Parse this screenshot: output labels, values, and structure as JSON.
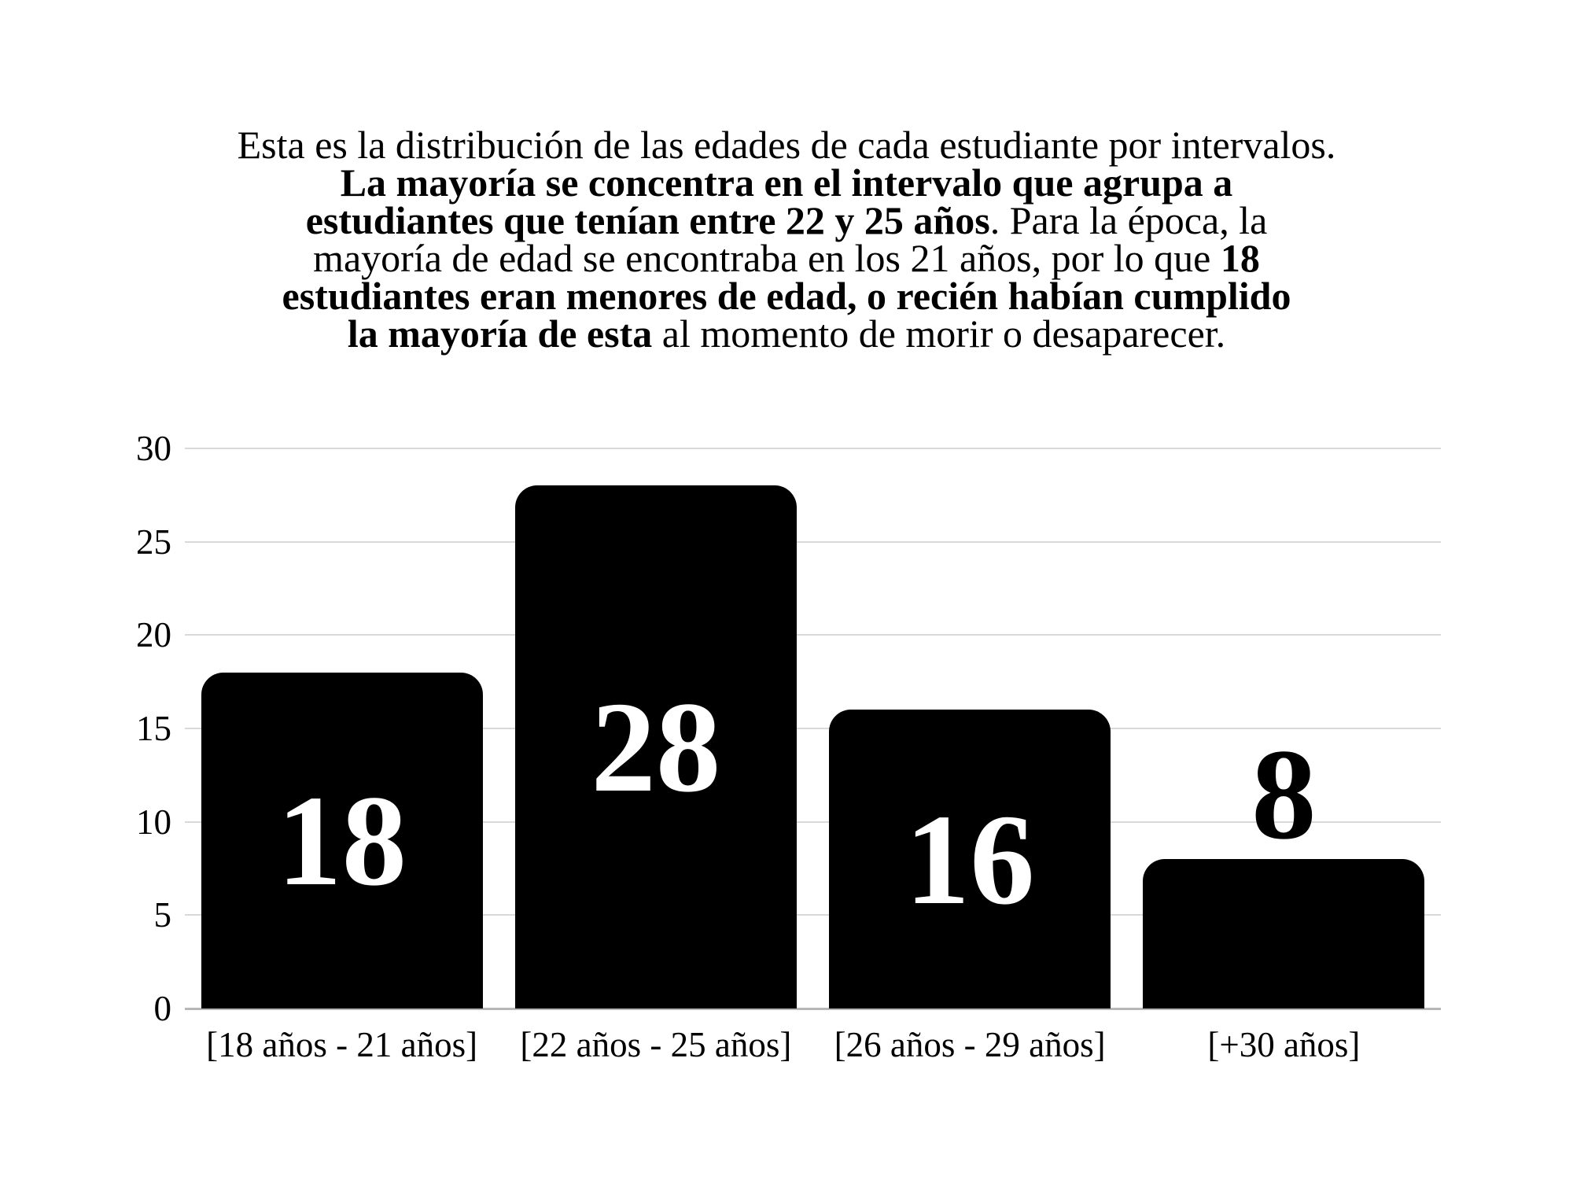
{
  "colors": {
    "background": "#ffffff",
    "text": "#000000",
    "gridline": "#d9d9d9",
    "zero_axis": "#b7b7b7",
    "bar": "#000000",
    "value_label_inside": "#ffffff",
    "value_label_outside": "#000000"
  },
  "paragraph": {
    "lines": [
      {
        "segments": [
          {
            "text": "Esta es la distribución de las edades de cada estudiante por intervalos.",
            "bold": false
          }
        ]
      },
      {
        "segments": [
          {
            "text": "La mayoría se concentra en el intervalo que agrupa a",
            "bold": true
          }
        ]
      },
      {
        "segments": [
          {
            "text": "estudiantes que tenían entre 22 y 25 años",
            "bold": true
          },
          {
            "text": ". Para la época, la",
            "bold": false
          }
        ]
      },
      {
        "segments": [
          {
            "text": "mayoría de edad se encontraba en los 21 años, por lo que ",
            "bold": false
          },
          {
            "text": "18",
            "bold": true
          }
        ]
      },
      {
        "segments": [
          {
            "text": "estudiantes eran menores de edad, o recién habían cumplido",
            "bold": true
          }
        ]
      },
      {
        "segments": [
          {
            "text": "la mayoría de esta",
            "bold": true
          },
          {
            "text": " al momento de morir o desaparecer.",
            "bold": false
          }
        ]
      }
    ]
  },
  "chart_data": {
    "type": "bar",
    "categories": [
      "[18 años - 21 años]",
      "[22 años - 25 años]",
      "[26 años - 29 años]",
      "[+30 años]"
    ],
    "values": [
      18,
      28,
      16,
      8
    ],
    "title": "",
    "xlabel": "",
    "ylabel": "",
    "ylim": [
      0,
      30
    ],
    "yticks": [
      0,
      5,
      10,
      15,
      20,
      25,
      30
    ],
    "grid": true,
    "legend": false,
    "bar_color": "#000000",
    "value_labels_shown": true
  }
}
